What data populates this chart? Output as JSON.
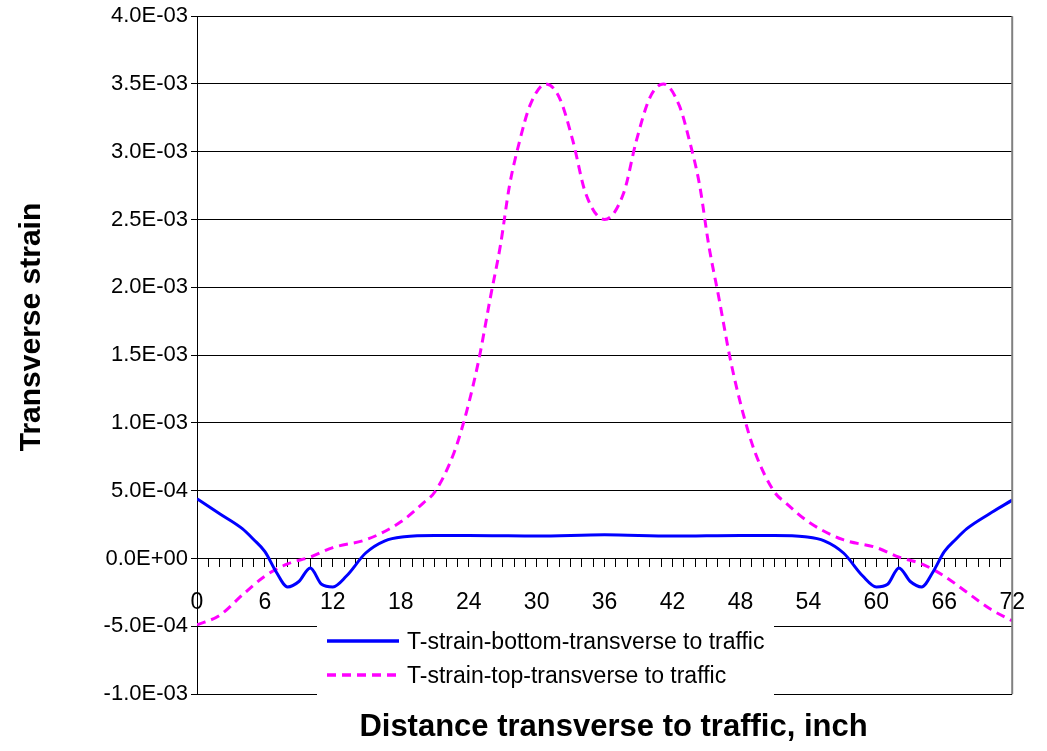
{
  "chart_data": {
    "type": "line",
    "xlabel": "Distance transverse to traffic, inch",
    "ylabel": "Transverse strain",
    "xlim": [
      0,
      72
    ],
    "xticks": [
      0,
      {
        "value": 1,
        "label": null
      },
      {
        "value": 2,
        "label": null
      },
      {
        "value": 3,
        "label": null
      },
      {
        "value": 4,
        "label": null
      },
      {
        "value": 5,
        "label": null
      },
      6,
      {
        "value": 7,
        "label": null
      },
      {
        "value": 8,
        "label": null
      },
      {
        "value": 9,
        "label": null
      },
      {
        "value": 10,
        "label": null
      },
      {
        "value": 11,
        "label": null
      },
      12,
      {
        "value": 13,
        "label": null
      },
      {
        "value": 14,
        "label": null
      },
      {
        "value": 15,
        "label": null
      },
      {
        "value": 16,
        "label": null
      },
      {
        "value": 17,
        "label": null
      },
      18,
      {
        "value": 19,
        "label": null
      },
      {
        "value": 20,
        "label": null
      },
      {
        "value": 21,
        "label": null
      },
      {
        "value": 22,
        "label": null
      },
      {
        "value": 23,
        "label": null
      },
      24,
      {
        "value": 25,
        "label": null
      },
      {
        "value": 26,
        "label": null
      },
      {
        "value": 27,
        "label": null
      },
      {
        "value": 28,
        "label": null
      },
      {
        "value": 29,
        "label": null
      },
      30,
      {
        "value": 31,
        "label": null
      },
      {
        "value": 32,
        "label": null
      },
      {
        "value": 33,
        "label": null
      },
      {
        "value": 34,
        "label": null
      },
      {
        "value": 35,
        "label": null
      },
      36,
      {
        "value": 37,
        "label": null
      },
      {
        "value": 38,
        "label": null
      },
      {
        "value": 39,
        "label": null
      },
      {
        "value": 40,
        "label": null
      },
      {
        "value": 41,
        "label": null
      },
      42,
      {
        "value": 43,
        "label": null
      },
      {
        "value": 44,
        "label": null
      },
      {
        "value": 45,
        "label": null
      },
      {
        "value": 46,
        "label": null
      },
      {
        "value": 47,
        "label": null
      },
      48,
      {
        "value": 49,
        "label": null
      },
      {
        "value": 50,
        "label": null
      },
      {
        "value": 51,
        "label": null
      },
      {
        "value": 52,
        "label": null
      },
      {
        "value": 53,
        "label": null
      },
      54,
      {
        "value": 55,
        "label": null
      },
      {
        "value": 56,
        "label": null
      },
      {
        "value": 57,
        "label": null
      },
      {
        "value": 58,
        "label": null
      },
      {
        "value": 59,
        "label": null
      },
      60,
      {
        "value": 61,
        "label": null
      },
      {
        "value": 62,
        "label": null
      },
      {
        "value": 63,
        "label": null
      },
      {
        "value": 64,
        "label": null
      },
      {
        "value": 65,
        "label": null
      },
      66,
      {
        "value": 67,
        "label": null
      },
      {
        "value": 68,
        "label": null
      },
      {
        "value": 69,
        "label": null
      },
      {
        "value": 70,
        "label": null
      },
      {
        "value": 71,
        "label": null
      },
      72
    ],
    "ylim": [
      -0.001,
      0.004
    ],
    "yticks": [
      {
        "value": -0.001,
        "label": "-1.0E-03"
      },
      {
        "value": -0.0005,
        "label": "-5.0E-04"
      },
      {
        "value": 0,
        "label": "0.0E+00"
      },
      {
        "value": 0.0005,
        "label": "5.0E-04"
      },
      {
        "value": 0.001,
        "label": "1.0E-03"
      },
      {
        "value": 0.0015,
        "label": "1.5E-03"
      },
      {
        "value": 0.002,
        "label": "2.0E-03"
      },
      {
        "value": 0.0025,
        "label": "2.5E-03"
      },
      {
        "value": 0.003,
        "label": "3.0E-03"
      },
      {
        "value": 0.0035,
        "label": "3.5E-03"
      },
      {
        "value": 0.004,
        "label": "4.0E-03"
      }
    ],
    "grid": "y",
    "legend": "bottom",
    "series": [
      {
        "name": "T-strain-bottom-transverse to traffic",
        "color": "#0000ff",
        "line_style": "solid",
        "x": [
          0,
          2,
          4,
          5,
          6,
          7,
          8,
          9,
          10,
          11,
          12,
          13.2,
          14.9,
          16.6,
          18.3,
          21,
          24,
          30,
          36,
          42,
          48,
          51,
          53.7,
          55.4,
          57.1,
          58.8,
          60,
          61,
          62,
          63,
          64,
          65,
          66,
          67,
          68,
          70,
          72
        ],
        "values": [
          0.00044,
          0.00033,
          0.00022,
          0.00014,
          5e-05,
          -0.0001,
          -0.00021,
          -0.00017,
          -7e-05,
          -0.00019,
          -0.00021,
          -0.00013,
          4e-05,
          0.00013,
          0.00016,
          0.00017,
          0.00017,
          0.000165,
          0.000175,
          0.000165,
          0.00017,
          0.00017,
          0.00016,
          0.00013,
          4e-05,
          -0.00013,
          -0.00021,
          -0.00019,
          -7e-05,
          -0.00017,
          -0.00021,
          -0.0001,
          5e-05,
          0.00014,
          0.00022,
          0.00033,
          0.00043
        ]
      },
      {
        "name": "T-strain-top-transverse to traffic",
        "color": "#ff00ff",
        "line_style": "dashed",
        "x": [
          0,
          2,
          4,
          6,
          8,
          10,
          12,
          15,
          18,
          20,
          21,
          22.7,
          23.8,
          24.9,
          25.9,
          26.8,
          27.6,
          28.5,
          29.4,
          30.8,
          32,
          33.2,
          34.3,
          36,
          37.7,
          38.8,
          40,
          41.2,
          42.6,
          43.5,
          44.4,
          45.2,
          46.1,
          47.1,
          48.2,
          49.3,
          51,
          52,
          54,
          57,
          60,
          62,
          64,
          66,
          68,
          70,
          72
        ],
        "values": [
          -0.00049,
          -0.00042,
          -0.00027,
          -0.00013,
          -4e-05,
          1e-05,
          8e-05,
          0.00014,
          0.00027,
          0.00041,
          0.00049,
          0.00078,
          0.00108,
          0.00147,
          0.00192,
          0.00231,
          0.00275,
          0.00308,
          0.00334,
          0.0035,
          0.0034,
          0.00308,
          0.0027,
          0.0025,
          0.0027,
          0.00308,
          0.0034,
          0.0035,
          0.00334,
          0.00308,
          0.00275,
          0.00231,
          0.00192,
          0.00147,
          0.00108,
          0.00078,
          0.00049,
          0.00041,
          0.00027,
          0.00014,
          8e-05,
          1e-05,
          -4e-05,
          -0.00013,
          -0.00025,
          -0.00037,
          -0.00046
        ]
      }
    ]
  }
}
